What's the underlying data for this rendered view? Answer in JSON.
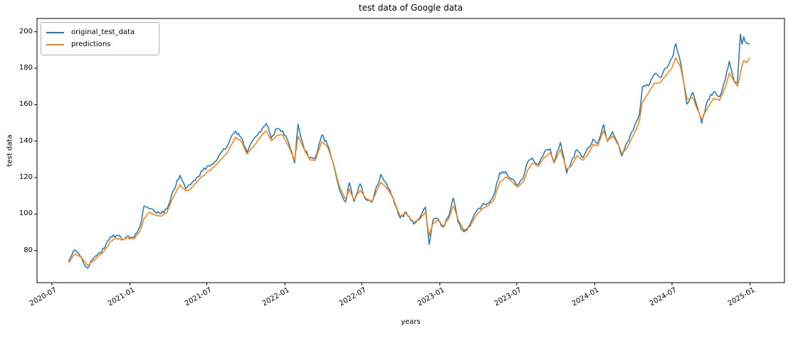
{
  "title": "test data of Google data",
  "xlabel": "years",
  "ylabel": "test data",
  "legend": {
    "position": "upper left",
    "labels": [
      "original_test_data",
      "predictions"
    ]
  },
  "colors": {
    "original_test_data": "#1f77b4",
    "predictions": "#ff7f0e",
    "spine": "#000000",
    "text": "#000000",
    "legend_border": "#b3b3b3",
    "background": "#ffffff"
  },
  "chart_data": {
    "type": "line",
    "title": "test data of Google data",
    "xlabel": "years",
    "ylabel": "test data",
    "grid": false,
    "legend_position": "upper left",
    "ylim": [
      62.4,
      207.3
    ],
    "xlim": [
      "2020-05-27",
      "2025-03-23"
    ],
    "yticks": [
      80,
      100,
      120,
      140,
      160,
      180,
      200
    ],
    "xtick_dates": [
      "2020-07-01",
      "2021-01-01",
      "2021-07-01",
      "2022-01-01",
      "2022-07-01",
      "2023-01-01",
      "2023-07-01",
      "2024-01-01",
      "2024-07-01",
      "2025-01-01"
    ],
    "xtick_labels": [
      "2020-07",
      "2021-01",
      "2021-07",
      "2022-01",
      "2022-07",
      "2023-01",
      "2023-07",
      "2024-01",
      "2024-07",
      "2025-01"
    ],
    "x": [
      "2020-08-10",
      "2020-08-24",
      "2020-09-07",
      "2020-09-23",
      "2020-10-05",
      "2020-10-19",
      "2020-11-02",
      "2020-11-16",
      "2020-11-30",
      "2020-12-14",
      "2020-12-28",
      "2021-01-11",
      "2021-01-25",
      "2021-02-03",
      "2021-02-15",
      "2021-03-01",
      "2021-03-15",
      "2021-03-29",
      "2021-04-12",
      "2021-04-29",
      "2021-05-12",
      "2021-05-24",
      "2021-06-07",
      "2021-06-21",
      "2021-07-06",
      "2021-07-19",
      "2021-08-02",
      "2021-08-16",
      "2021-08-30",
      "2021-09-07",
      "2021-09-20",
      "2021-10-04",
      "2021-10-18",
      "2021-11-01",
      "2021-11-18",
      "2021-11-30",
      "2021-12-13",
      "2021-12-27",
      "2022-01-10",
      "2022-01-24",
      "2022-02-01",
      "2022-02-14",
      "2022-02-28",
      "2022-03-14",
      "2022-03-29",
      "2022-04-11",
      "2022-04-25",
      "2022-05-09",
      "2022-05-24",
      "2022-06-02",
      "2022-06-13",
      "2022-06-27",
      "2022-07-11",
      "2022-07-25",
      "2022-08-15",
      "2022-08-29",
      "2022-09-12",
      "2022-09-30",
      "2022-10-14",
      "2022-10-31",
      "2022-11-14",
      "2022-11-28",
      "2022-12-07",
      "2022-12-16",
      "2022-12-28",
      "2023-01-09",
      "2023-01-23",
      "2023-02-02",
      "2023-02-13",
      "2023-02-27",
      "2023-03-13",
      "2023-03-27",
      "2023-04-10",
      "2023-04-24",
      "2023-05-08",
      "2023-05-22",
      "2023-06-05",
      "2023-06-19",
      "2023-07-03",
      "2023-07-17",
      "2023-07-27",
      "2023-08-07",
      "2023-08-21",
      "2023-09-05",
      "2023-09-18",
      "2023-09-27",
      "2023-10-12",
      "2023-10-27",
      "2023-11-06",
      "2023-11-20",
      "2023-12-04",
      "2023-12-18",
      "2023-12-28",
      "2024-01-08",
      "2024-01-22",
      "2024-01-31",
      "2024-02-12",
      "2024-02-26",
      "2024-03-05",
      "2024-03-18",
      "2024-04-01",
      "2024-04-15",
      "2024-04-22",
      "2024-05-06",
      "2024-05-20",
      "2024-06-03",
      "2024-06-17",
      "2024-07-01",
      "2024-07-10",
      "2024-07-22",
      "2024-08-05",
      "2024-08-19",
      "2024-09-09",
      "2024-09-23",
      "2024-10-07",
      "2024-10-21",
      "2024-11-04",
      "2024-11-13",
      "2024-11-25",
      "2024-12-02",
      "2024-12-09",
      "2024-12-13",
      "2024-12-17",
      "2024-12-23",
      "2024-12-30"
    ],
    "series": [
      {
        "name": "original_test_data",
        "color": "#1f77b4",
        "jitter": 1.0,
        "values": [
          74.5,
          80.3,
          76.5,
          70.3,
          74.8,
          78.6,
          81.2,
          87.6,
          88.3,
          86.2,
          88.0,
          87.2,
          93.5,
          104.4,
          103.0,
          101.2,
          100.3,
          102.7,
          112.6,
          121.3,
          113.9,
          116.2,
          120.1,
          123.6,
          126.4,
          128.7,
          133.4,
          136.3,
          143.5,
          145.6,
          141.9,
          133.9,
          140.8,
          144.9,
          149.7,
          141.6,
          146.9,
          145.7,
          138.9,
          128.1,
          149.3,
          137.0,
          130.6,
          131.2,
          143.4,
          138.2,
          127.5,
          113.8,
          106.6,
          117.2,
          106.9,
          116.6,
          107.8,
          106.4,
          121.8,
          116.5,
          109.3,
          98.0,
          101.0,
          94.6,
          97.7,
          103.8,
          83.4,
          96.8,
          97.2,
          92.9,
          99.6,
          108.8,
          95.3,
          90.2,
          94.2,
          101.1,
          104.8,
          105.9,
          110.5,
          122.6,
          123.4,
          119.3,
          115.8,
          120.2,
          128.7,
          130.8,
          127.4,
          134.3,
          135.7,
          128.5,
          139.3,
          122.5,
          128.4,
          135.3,
          130.9,
          136.5,
          141.1,
          138.7,
          149.1,
          139.8,
          145.2,
          138.0,
          131.9,
          139.5,
          146.1,
          154.6,
          169.4,
          170.3,
          176.8,
          174.9,
          180.1,
          185.6,
          193.4,
          182.4,
          160.3,
          166.7,
          149.9,
          162.5,
          167.0,
          164.4,
          174.1,
          183.8,
          172.8,
          171.9,
          198.6,
          193.2,
          197.3,
          193.9,
          193.4
        ]
      },
      {
        "name": "predictions",
        "color": "#ff7f0e",
        "jitter": 0.38,
        "values": [
          73.6,
          77.9,
          76.8,
          71.9,
          73.8,
          77.0,
          79.7,
          85.0,
          86.8,
          85.9,
          86.7,
          86.4,
          90.9,
          97.6,
          100.9,
          99.6,
          98.8,
          100.9,
          108.8,
          116.1,
          112.9,
          113.8,
          117.3,
          120.9,
          123.5,
          125.9,
          129.8,
          132.9,
          138.8,
          142.2,
          140.0,
          132.9,
          136.8,
          141.4,
          145.6,
          140.3,
          143.2,
          143.3,
          136.8,
          129.5,
          142.7,
          136.3,
          129.9,
          129.5,
          139.6,
          137.0,
          128.0,
          115.4,
          108.3,
          113.7,
          107.9,
          113.2,
          108.5,
          106.8,
          117.4,
          114.2,
          108.9,
          98.9,
          100.2,
          95.7,
          96.8,
          101.3,
          88.0,
          94.8,
          96.4,
          93.3,
          98.1,
          104.5,
          97.0,
          91.0,
          93.1,
          98.9,
          102.8,
          104.4,
          107.7,
          117.5,
          120.4,
          117.9,
          114.8,
          117.7,
          124.2,
          128.0,
          126.1,
          131.3,
          133.6,
          128.0,
          135.4,
          124.5,
          126.1,
          132.0,
          129.6,
          133.5,
          138.3,
          137.4,
          145.8,
          140.2,
          142.8,
          137.8,
          133.0,
          136.6,
          143.1,
          150.7,
          161.4,
          166.2,
          171.7,
          172.1,
          176.2,
          180.4,
          185.7,
          180.1,
          163.2,
          163.7,
          152.0,
          158.6,
          163.5,
          162.3,
          169.7,
          177.4,
          172.5,
          170.1,
          176.8,
          181.5,
          184.2,
          183.0,
          185.5
        ]
      }
    ]
  }
}
